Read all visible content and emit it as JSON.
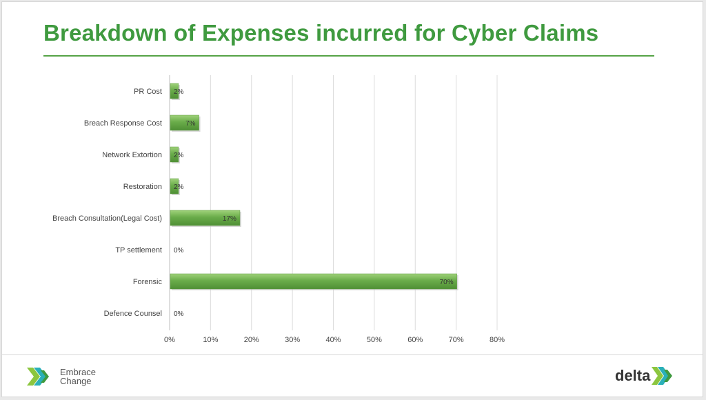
{
  "title": "Breakdown of Expenses incurred for Cyber Claims",
  "brand": {
    "tagline_line1": "Embrace",
    "tagline_line2": "Change",
    "wordmark": "delta",
    "accent_colors": [
      "#3f9a3f",
      "#8cc63f",
      "#2ab0b8"
    ]
  },
  "chart_data": {
    "type": "bar",
    "orientation": "horizontal",
    "title": "Breakdown of Expenses incurred for Cyber Claims",
    "categories": [
      "PR Cost",
      "Breach Response Cost",
      "Network Extortion",
      "Restoration",
      "Breach Consultation(Legal Cost)",
      "TP settlement",
      "Forensic",
      "Defence Counsel"
    ],
    "values": [
      2,
      7,
      2,
      2,
      17,
      0,
      70,
      0
    ],
    "data_labels": [
      "2%",
      "7%",
      "2%",
      "2%",
      "17%",
      "0%",
      "70%",
      "0%"
    ],
    "xlim": [
      0,
      80
    ],
    "xticks": [
      "0%",
      "10%",
      "20%",
      "30%",
      "40%",
      "50%",
      "60%",
      "70%",
      "80%"
    ],
    "grid": "vertical",
    "bar_color": "#6aac4a",
    "legend": "none"
  }
}
